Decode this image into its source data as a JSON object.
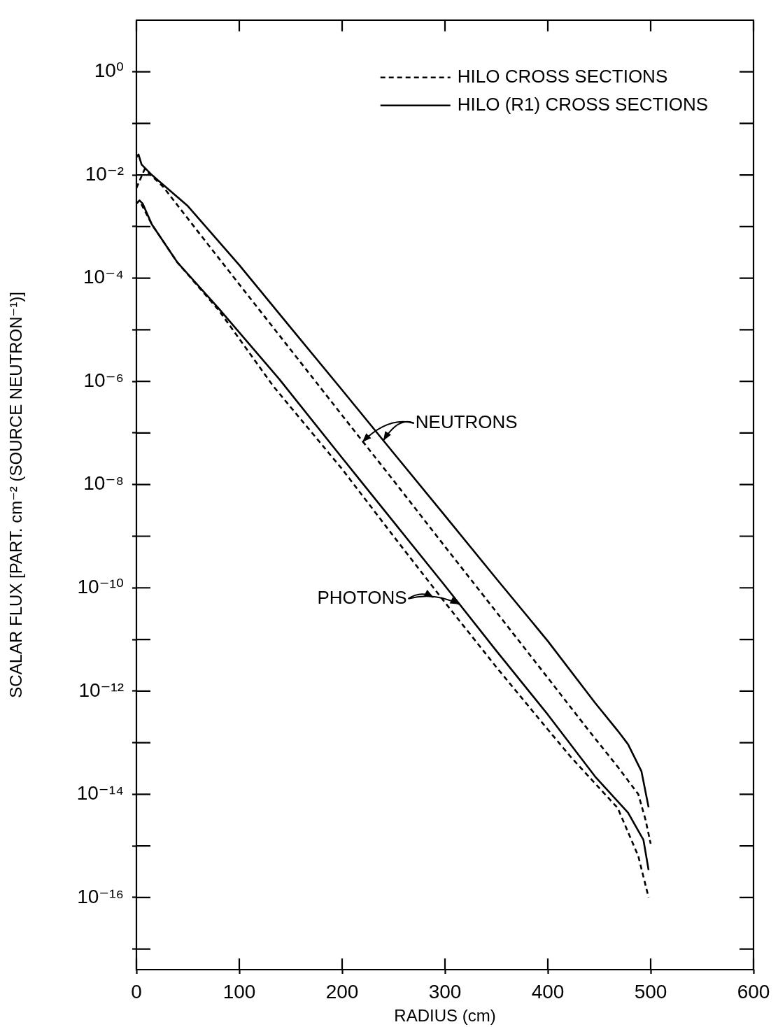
{
  "chart_data": {
    "type": "line",
    "xlabel": "RADIUS (cm)",
    "ylabel": "SCALAR FLUX [PART. cm⁻² (SOURCE NEUTRON⁻¹)]",
    "log": "y",
    "legend": "top right",
    "marker": "none",
    "xlim": [
      0,
      600
    ],
    "xticks": [
      0,
      100,
      200,
      300,
      400,
      500,
      600
    ],
    "ylim": [
      4e-18,
      10
    ],
    "yticks": [
      {
        "value": 1,
        "label": "10⁰"
      },
      {
        "value": 0.1,
        "label": null
      },
      {
        "value": 0.01,
        "label": "10⁻²"
      },
      {
        "value": 0.001,
        "label": null
      },
      {
        "value": 0.0001,
        "label": "10⁻⁴"
      },
      {
        "value": 1e-05,
        "label": null
      },
      {
        "value": 1e-06,
        "label": "10⁻⁶"
      },
      {
        "value": 1e-07,
        "label": null
      },
      {
        "value": 1e-08,
        "label": "10⁻⁸"
      },
      {
        "value": 1e-09,
        "label": null
      },
      {
        "value": 1e-10,
        "label": "10⁻¹⁰"
      },
      {
        "value": 1e-11,
        "label": null
      },
      {
        "value": 1e-12,
        "label": "10⁻¹²"
      },
      {
        "value": 1e-13,
        "label": null
      },
      {
        "value": 1e-14,
        "label": "10⁻¹⁴"
      },
      {
        "value": 1e-15,
        "label": null
      },
      {
        "value": 1e-16,
        "label": "10⁻¹⁶"
      },
      {
        "value": 1e-17,
        "label": null
      }
    ],
    "series": [
      {
        "name": "HILO CROSS SECTIONS",
        "color": "#000000",
        "line_style": "dashed",
        "x": [
          0,
          8,
          26,
          58,
          100,
          150,
          200,
          250,
          300,
          350,
          400,
          440,
          468,
          488,
          495,
          500
        ],
        "values": [
          0.0056,
          0.013,
          0.0059,
          0.00089,
          7.6e-05,
          4.1e-06,
          2.2e-07,
          1.2e-08,
          6.3e-10,
          3.4e-11,
          1.8e-12,
          1.7e-13,
          3.4e-14,
          1e-14,
          3.2e-15,
          1.1e-15
        ]
      },
      {
        "name": "HILO (R1) CROSS SECTIONS",
        "color": "#000000",
        "line_style": "solid",
        "x": [
          0,
          2,
          5,
          15,
          50,
          100,
          150,
          200,
          250,
          300,
          350,
          400,
          446,
          468,
          478,
          491,
          498
        ],
        "values": [
          0.022,
          0.025,
          0.016,
          0.01,
          0.0025,
          0.00018,
          1.1e-05,
          6.8e-07,
          4.1e-08,
          2.5e-09,
          1.5e-10,
          9.3e-12,
          5.9e-13,
          1.7e-13,
          9.3e-14,
          2.8e-14,
          5.6e-15
        ]
      },
      {
        "color": "#000000",
        "line_style": "dashed",
        "x": [
          0,
          3,
          15,
          40,
          80,
          133,
          200,
          250,
          300,
          350,
          400,
          423,
          468,
          488,
          498
        ],
        "values": [
          0.0028,
          0.0032,
          0.0011,
          0.0002,
          2.4e-05,
          8.1e-07,
          2e-08,
          1e-09,
          5.2e-11,
          2.9e-12,
          1.8e-13,
          5.1e-14,
          5.4e-15,
          6.3e-16,
          1e-16
        ]
      },
      {
        "color": "#000000",
        "line_style": "solid",
        "x": [
          0,
          3,
          6,
          15,
          40,
          80,
          139,
          200,
          250,
          300,
          350,
          400,
          446,
          478,
          493,
          498
        ],
        "values": [
          0.0028,
          0.0032,
          0.0028,
          0.0011,
          0.0002,
          2.6e-05,
          1.1e-06,
          3.3e-08,
          1.9e-09,
          1.1e-10,
          6e-12,
          3.5e-13,
          2.2e-14,
          4.4e-15,
          1.3e-15,
          3.4e-16
        ]
      }
    ],
    "annotations": [
      {
        "text": "NEUTRONS",
        "x": 240,
        "y": 7.1e-08
      },
      {
        "text": "PHOTONS",
        "x": 314,
        "y": 4.8e-11
      }
    ]
  }
}
